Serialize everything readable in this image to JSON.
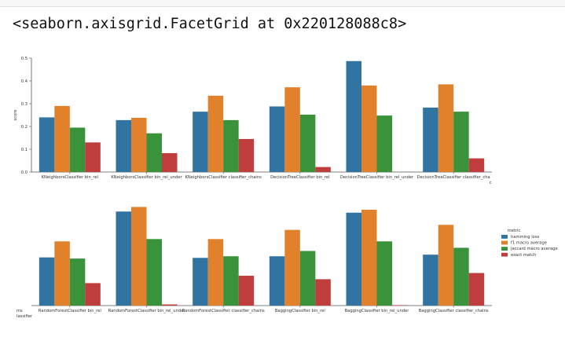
{
  "output": {
    "text": "<seaborn.axisgrid.FacetGrid at 0x220128088c8>"
  },
  "chart_data": {
    "type": "bar",
    "ylabel": "score",
    "ylim": [
      0,
      0.5
    ],
    "yticks": [
      "0.0",
      "0.1",
      "0.2",
      "0.3",
      "0.4",
      "0.5"
    ],
    "grid": false,
    "legend_position": "right",
    "legend_title": "metric",
    "clipped_labels": {
      "row1_right": "c",
      "row2_left": [
        "ms",
        "lassifier"
      ]
    },
    "series": [
      {
        "name": "hamming loss",
        "color": "#3274a1"
      },
      {
        "name": "f1 macro average",
        "color": "#e1812c"
      },
      {
        "name": "jaccard macro average",
        "color": "#3a923a"
      },
      {
        "name": "exact match",
        "color": "#c03d3e"
      }
    ],
    "rows": [
      {
        "categories": [
          "KNeighborsClassifier bin_rel",
          "KNeighborsClassifier bin_rel_under",
          "KNeighborsClassifier classifier_chains",
          "DecisionTreeClassifier bin_rel",
          "DecisionTreeClassifier bin_rel_under",
          "DecisionTreeClassifier classifier_cha"
        ],
        "values": [
          [
            0.24,
            0.29,
            0.195,
            0.13
          ],
          [
            0.228,
            0.238,
            0.17,
            0.083
          ],
          [
            0.265,
            0.335,
            0.228,
            0.145
          ],
          [
            0.288,
            0.372,
            0.252,
            0.022
          ],
          [
            0.487,
            0.38,
            0.248,
            0.0
          ],
          [
            0.283,
            0.385,
            0.265,
            0.06
          ]
        ]
      },
      {
        "categories": [
          "RandomForestClassifier bin_rel",
          "RandomForestClassifier bin_rel_under",
          "RandomForestClassifier classifier_chains",
          "BaggingClassifier bin_rel",
          "BaggingClassifier bin_rel_under",
          "BaggingClassifier classifier_chains"
        ],
        "values": [
          [
            0.21,
            0.28,
            0.205,
            0.098
          ],
          [
            0.41,
            0.43,
            0.29,
            0.005
          ],
          [
            0.208,
            0.29,
            0.215,
            0.13
          ],
          [
            0.215,
            0.33,
            0.238,
            0.115
          ],
          [
            0.405,
            0.418,
            0.28,
            0.002
          ],
          [
            0.222,
            0.352,
            0.252,
            0.142
          ]
        ]
      }
    ]
  }
}
